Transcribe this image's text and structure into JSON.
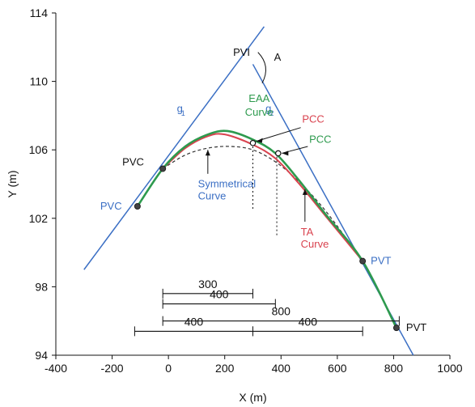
{
  "chart_data": {
    "type": "line",
    "xlabel": "X (m)",
    "ylabel": "Y (m)",
    "xlim": [
      -400,
      1000
    ],
    "ylim": [
      94,
      114
    ],
    "x_ticks": [
      -400,
      -200,
      0,
      200,
      400,
      600,
      800,
      1000
    ],
    "y_ticks": [
      94,
      98,
      102,
      106,
      110,
      114
    ],
    "tangents": {
      "g1": {
        "x": [
          -300,
          340
        ],
        "y": [
          99.0,
          113.2
        ]
      },
      "g2": {
        "x": [
          300,
          870
        ],
        "y": [
          111.0,
          94.0
        ]
      }
    },
    "series": [
      {
        "name": "EAA Curve",
        "color": "#2e9a4e",
        "dash": "",
        "x": [
          -110,
          -20,
          60,
          140,
          210,
          300,
          380,
          460,
          560,
          690,
          810
        ],
        "y": [
          102.7,
          104.9,
          106.2,
          106.9,
          107.1,
          106.6,
          105.8,
          104.3,
          102.2,
          99.5,
          95.6
        ]
      },
      {
        "name": "TA Curve",
        "color": "#d9434f",
        "dash": "",
        "x": [
          -20,
          60,
          140,
          200,
          300,
          380,
          460,
          560,
          690
        ],
        "y": [
          104.9,
          106.1,
          106.8,
          106.9,
          106.3,
          105.5,
          104.1,
          102.1,
          99.5
        ]
      },
      {
        "name": "Symmetrical Curve",
        "color": "#333333",
        "dash": "4,3",
        "x": [
          -20,
          60,
          140,
          220,
          300,
          380,
          460,
          560,
          690
        ],
        "y": [
          104.9,
          105.7,
          106.1,
          106.2,
          106.0,
          105.3,
          104.2,
          102.4,
          99.5
        ]
      }
    ],
    "points": [
      {
        "label": "PVC",
        "x": -110,
        "y": 102.7,
        "color": "#3b6fc4",
        "text_dx": -46,
        "text_dy": 0
      },
      {
        "label": "PVC",
        "x": -20,
        "y": 104.9,
        "color": "#111111",
        "text_dx": -50,
        "text_dy": -8
      },
      {
        "label": "PVT",
        "x": 690,
        "y": 99.5,
        "color": "#3b6fc4",
        "text_dx": 10,
        "text_dy": 0
      },
      {
        "label": "PVT",
        "x": 810,
        "y": 95.6,
        "color": "#111111",
        "text_dx": 12,
        "text_dy": 0
      }
    ],
    "open_points": [
      {
        "x": 300,
        "y": 106.4
      },
      {
        "x": 390,
        "y": 105.8
      }
    ],
    "labels": {
      "pvi": "PVI",
      "angle": "A",
      "g1": "g",
      "g1_sub": "1",
      "g2": "g",
      "g2_sub": "2",
      "eaa": [
        "EAA",
        "Curve"
      ],
      "pcc_red": "PCC",
      "pcc_green": "PCC",
      "symmetrical": [
        "Symmetrical",
        "Curve"
      ],
      "ta": [
        "TA",
        "Curve"
      ]
    },
    "dimensions": [
      {
        "label": "300",
        "x1": -20,
        "x2": 300,
        "y": 97.6
      },
      {
        "label": "400",
        "x1": -20,
        "x2": 380,
        "y": 97.0
      },
      {
        "label": "800",
        "x1": -20,
        "x2": 820,
        "y": 96.0
      },
      {
        "label": "400",
        "x1": -120,
        "x2": 300,
        "y": 95.4
      },
      {
        "label": "400",
        "x1": 300,
        "x2": 690,
        "y": 95.4
      }
    ]
  }
}
